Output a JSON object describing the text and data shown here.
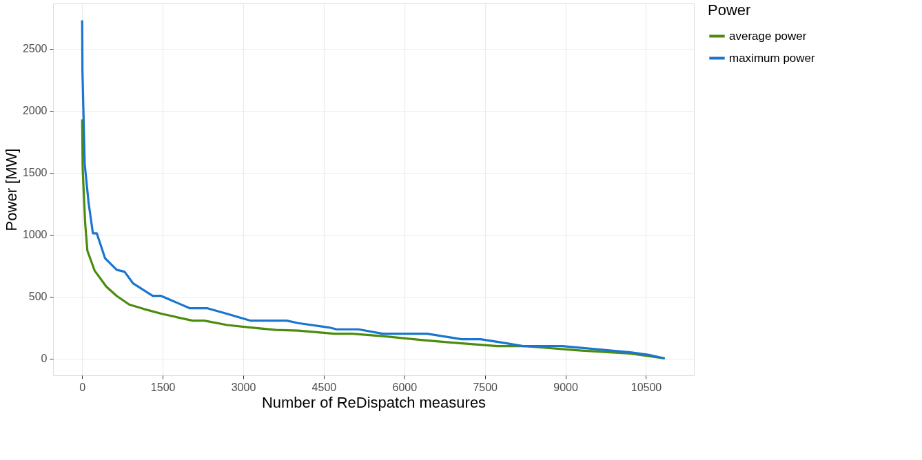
{
  "chart_data": {
    "type": "line",
    "xlabel": "Number of ReDispatch measures",
    "ylabel": "Power [MW]",
    "legend_title": "Power",
    "legend": "right",
    "grid": true,
    "line_style": "solid",
    "marker": "none",
    "xlim": [
      -542,
      11392
    ],
    "ylim": [
      -136,
      2866
    ],
    "xticks": [
      0,
      1500,
      3000,
      4500,
      6000,
      7500,
      9000,
      10500
    ],
    "yticks": [
      0,
      500,
      1000,
      1500,
      2000,
      2500
    ],
    "series": [
      {
        "name": "average power",
        "color": "#4a8c0c",
        "x": [
          0,
          10,
          56,
          97,
          231,
          450,
          643,
          876,
          1144,
          1484,
          2056,
          2275,
          2700,
          3139,
          3613,
          4027,
          4696,
          5024,
          5596,
          6308,
          6825,
          7737,
          8212,
          9258,
          10207,
          10850
        ],
        "values": [
          1930,
          1530,
          1090,
          870,
          710,
          580,
          505,
          435,
          400,
          360,
          305,
          305,
          270,
          250,
          230,
          225,
          200,
          200,
          180,
          150,
          130,
          100,
          100,
          65,
          40,
          0
        ]
      },
      {
        "name": "maximum power",
        "color": "#1a75cf",
        "x": [
          0,
          5,
          47,
          120,
          200,
          272,
          425,
          643,
          790,
          950,
          1314,
          1470,
          2007,
          2336,
          2700,
          3139,
          3808,
          4027,
          4599,
          4740,
          5146,
          5596,
          6423,
          7068,
          7421,
          7871,
          8212,
          8942,
          10207,
          10535,
          10850
        ],
        "values": [
          2730,
          2330,
          1570,
          1255,
          1010,
          1010,
          810,
          715,
          700,
          605,
          505,
          505,
          405,
          405,
          360,
          305,
          305,
          285,
          250,
          235,
          235,
          200,
          200,
          155,
          155,
          125,
          100,
          100,
          50,
          30,
          0
        ]
      }
    ]
  }
}
